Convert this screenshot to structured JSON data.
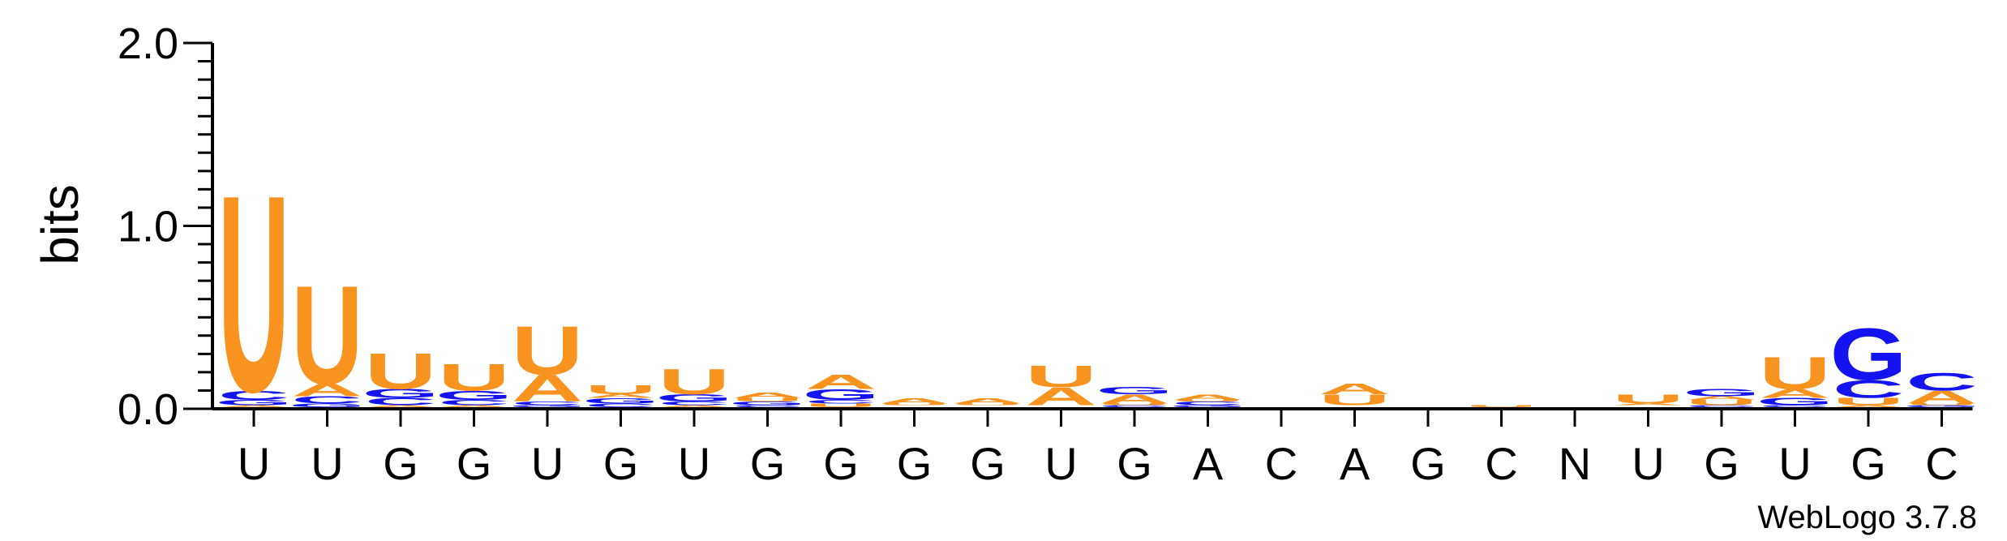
{
  "chart_data": {
    "type": "sequence-logo",
    "ylabel": "bits",
    "ylim": [
      0,
      2
    ],
    "yticks": [
      "0.0",
      "1.0",
      "2.0"
    ],
    "colors": {
      "U": "#f7931e",
      "A": "#f7931e",
      "G": "#1414f0",
      "C": "#1414f0"
    },
    "positions": [
      {
        "label": "U",
        "stack": [
          [
            "A",
            0.01
          ],
          [
            "G",
            0.03
          ],
          [
            "C",
            0.05
          ],
          [
            "U",
            1.1
          ]
        ]
      },
      {
        "label": "U",
        "stack": [
          [
            "G",
            0.02
          ],
          [
            "C",
            0.04
          ],
          [
            "A",
            0.07
          ],
          [
            "U",
            0.55
          ]
        ]
      },
      {
        "label": "G",
        "stack": [
          [
            "A",
            0.01
          ],
          [
            "C",
            0.04
          ],
          [
            "G",
            0.05
          ],
          [
            "U",
            0.2
          ]
        ]
      },
      {
        "label": "G",
        "stack": [
          [
            "A",
            0.01
          ],
          [
            "C",
            0.03
          ],
          [
            "G",
            0.05
          ],
          [
            "U",
            0.15
          ]
        ]
      },
      {
        "label": "U",
        "stack": [
          [
            "G",
            0.01
          ],
          [
            "C",
            0.02
          ],
          [
            "A",
            0.15
          ],
          [
            "U",
            0.27
          ]
        ]
      },
      {
        "label": "G",
        "stack": [
          [
            "C",
            0.02
          ],
          [
            "G",
            0.03
          ],
          [
            "A",
            0.02
          ],
          [
            "U",
            0.05
          ]
        ]
      },
      {
        "label": "U",
        "stack": [
          [
            "A",
            0.01
          ],
          [
            "C",
            0.02
          ],
          [
            "G",
            0.04
          ],
          [
            "U",
            0.14
          ]
        ]
      },
      {
        "label": "G",
        "stack": [
          [
            "C",
            0.01
          ],
          [
            "G",
            0.02
          ],
          [
            "U",
            0.02
          ],
          [
            "A",
            0.03
          ]
        ]
      },
      {
        "label": "G",
        "stack": [
          [
            "U",
            0.02
          ],
          [
            "C",
            0.02
          ],
          [
            "G",
            0.06
          ],
          [
            "A",
            0.08
          ]
        ]
      },
      {
        "label": "G",
        "stack": [
          [
            "C",
            0.005
          ],
          [
            "G",
            0.005
          ],
          [
            "U",
            0.01
          ],
          [
            "A",
            0.03
          ]
        ]
      },
      {
        "label": "G",
        "stack": [
          [
            "C",
            0.005
          ],
          [
            "G",
            0.005
          ],
          [
            "U",
            0.01
          ],
          [
            "A",
            0.03
          ]
        ]
      },
      {
        "label": "U",
        "stack": [
          [
            "C",
            0.005
          ],
          [
            "G",
            0.005
          ],
          [
            "A",
            0.1
          ],
          [
            "U",
            0.12
          ]
        ]
      },
      {
        "label": "G",
        "stack": [
          [
            "C",
            0.01
          ],
          [
            "U",
            0.01
          ],
          [
            "A",
            0.05
          ],
          [
            "G",
            0.04
          ]
        ]
      },
      {
        "label": "A",
        "stack": [
          [
            "G",
            0.01
          ],
          [
            "C",
            0.02
          ],
          [
            "U",
            0.01
          ],
          [
            "A",
            0.03
          ]
        ]
      },
      {
        "label": "C",
        "stack": []
      },
      {
        "label": "A",
        "stack": [
          [
            "C",
            0.005
          ],
          [
            "G",
            0.005
          ],
          [
            "U",
            0.06
          ],
          [
            "A",
            0.06
          ]
        ]
      },
      {
        "label": "G",
        "stack": []
      },
      {
        "label": "C",
        "stack": [
          [
            "U",
            0.01
          ]
        ]
      },
      {
        "label": "N",
        "stack": []
      },
      {
        "label": "U",
        "stack": [
          [
            "C",
            0.005
          ],
          [
            "G",
            0.005
          ],
          [
            "A",
            0.01
          ],
          [
            "U",
            0.05
          ]
        ]
      },
      {
        "label": "G",
        "stack": [
          [
            "C",
            0.01
          ],
          [
            "U",
            0.03
          ],
          [
            "A",
            0.02
          ],
          [
            "G",
            0.04
          ]
        ]
      },
      {
        "label": "U",
        "stack": [
          [
            "C",
            0.01
          ],
          [
            "G",
            0.04
          ],
          [
            "A",
            0.05
          ],
          [
            "U",
            0.18
          ]
        ]
      },
      {
        "label": "G",
        "stack": [
          [
            "A",
            0.01
          ],
          [
            "U",
            0.04
          ],
          [
            "C",
            0.1
          ],
          [
            "G",
            0.29
          ]
        ]
      },
      {
        "label": "C",
        "stack": [
          [
            "G",
            0.01
          ],
          [
            "U",
            0.01
          ],
          [
            "A",
            0.07
          ],
          [
            "C",
            0.1
          ]
        ]
      }
    ]
  },
  "credit": "WebLogo 3.7.8"
}
